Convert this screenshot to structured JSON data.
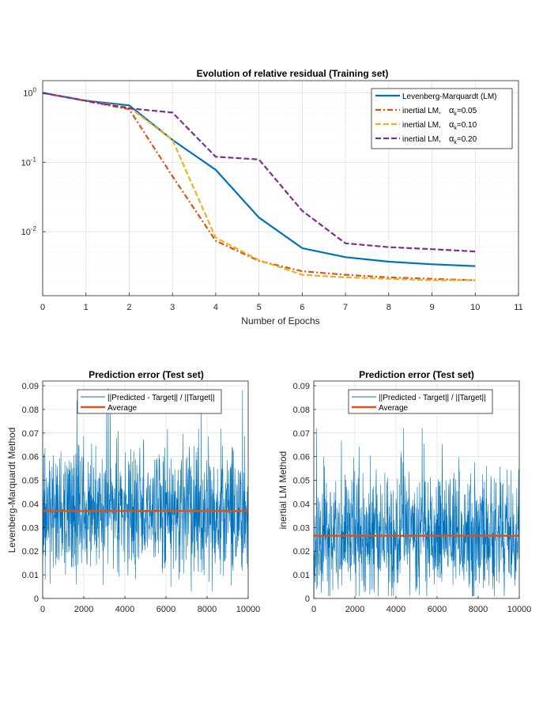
{
  "chart_data": [
    {
      "type": "line",
      "title": "Evolution of relative residual (Training set)",
      "xlabel": "Number of Epochs",
      "ylabel": "",
      "xscale": "linear",
      "yscale": "log",
      "xlim": [
        0,
        11
      ],
      "ylim": [
        0.0012,
        1.5
      ],
      "xticks": [
        0,
        1,
        2,
        3,
        4,
        5,
        6,
        7,
        8,
        9,
        10,
        11
      ],
      "yticks": [
        {
          "value": 1,
          "base": "10",
          "exp": "0"
        },
        {
          "value": 0.1,
          "base": "10",
          "exp": "-1"
        },
        {
          "value": 0.01,
          "base": "10",
          "exp": "-2"
        }
      ],
      "grid": true,
      "legend": "top-right",
      "series": [
        {
          "name": "Levenberg-Marquardt (LM)",
          "color": "#0072BD",
          "style": "solid",
          "x": [
            0,
            1,
            2,
            3,
            4,
            5,
            6,
            7,
            8,
            9,
            10
          ],
          "y": [
            1.0,
            0.77,
            0.66,
            0.21,
            0.078,
            0.016,
            0.0058,
            0.0043,
            0.0037,
            0.0034,
            0.0032
          ]
        },
        {
          "name": "inertial LM,",
          "alpha": "0.05",
          "color": "#D95319",
          "style": "dashdot",
          "x": [
            0,
            1,
            2,
            3,
            4,
            5,
            6,
            7,
            8,
            9,
            10
          ],
          "y": [
            1.0,
            0.76,
            0.58,
            0.063,
            0.0074,
            0.0038,
            0.0027,
            0.0024,
            0.0022,
            0.0021,
            0.002
          ]
        },
        {
          "name": "inertial LM,",
          "alpha": "0.10",
          "color": "#EDB120",
          "style": "dashed",
          "x": [
            0,
            1,
            2,
            3,
            4,
            5,
            6,
            7,
            8,
            9,
            10
          ],
          "y": [
            1.0,
            0.77,
            0.62,
            0.21,
            0.0082,
            0.0039,
            0.0024,
            0.0022,
            0.0021,
            0.002,
            0.002
          ]
        },
        {
          "name": "inertial LM,",
          "alpha": "0.20",
          "color": "#7E2F8E",
          "style": "dashed",
          "x": [
            0,
            1,
            2,
            3,
            4,
            5,
            6,
            7,
            8,
            9,
            10
          ],
          "y": [
            1.0,
            0.77,
            0.6,
            0.52,
            0.12,
            0.11,
            0.02,
            0.0068,
            0.006,
            0.0056,
            0.0052
          ]
        }
      ]
    },
    {
      "type": "line",
      "title": "Prediction error (Test set)",
      "xlabel": "",
      "ylabel": "Levenberg-Marquardt Method",
      "xlim": [
        0,
        10000
      ],
      "ylim": [
        0,
        0.092
      ],
      "xticks": [
        0,
        2000,
        4000,
        6000,
        8000,
        10000
      ],
      "yticks": [
        0,
        0.01,
        0.02,
        0.03,
        0.04,
        0.05,
        0.06,
        0.07,
        0.08,
        0.09
      ],
      "grid": true,
      "legend": "top-center",
      "noise": {
        "mean": 0.037,
        "spread": 0.021,
        "min": 0.003,
        "max": 0.089,
        "samples": 10000
      },
      "series": [
        {
          "name": "||Predicted - Target|| / ||Target||",
          "color": "#0072BD"
        },
        {
          "name": "Average",
          "color": "#D95319",
          "value": 0.037
        }
      ]
    },
    {
      "type": "line",
      "title": "Prediction error (Test set)",
      "xlabel": "",
      "ylabel": "inertial LM Method",
      "xlim": [
        0,
        10000
      ],
      "ylim": [
        0,
        0.092
      ],
      "xticks": [
        0,
        2000,
        4000,
        6000,
        8000,
        10000
      ],
      "yticks": [
        0,
        0.01,
        0.02,
        0.03,
        0.04,
        0.05,
        0.06,
        0.07,
        0.08,
        0.09
      ],
      "grid": true,
      "legend": "top-center",
      "noise": {
        "mean": 0.0265,
        "spread": 0.02,
        "min": 0.001,
        "max": 0.072,
        "samples": 10000
      },
      "series": [
        {
          "name": "||Predicted - Target|| / ||Target||",
          "color": "#0072BD"
        },
        {
          "name": "Average",
          "color": "#D95319",
          "value": 0.0265
        }
      ]
    }
  ]
}
